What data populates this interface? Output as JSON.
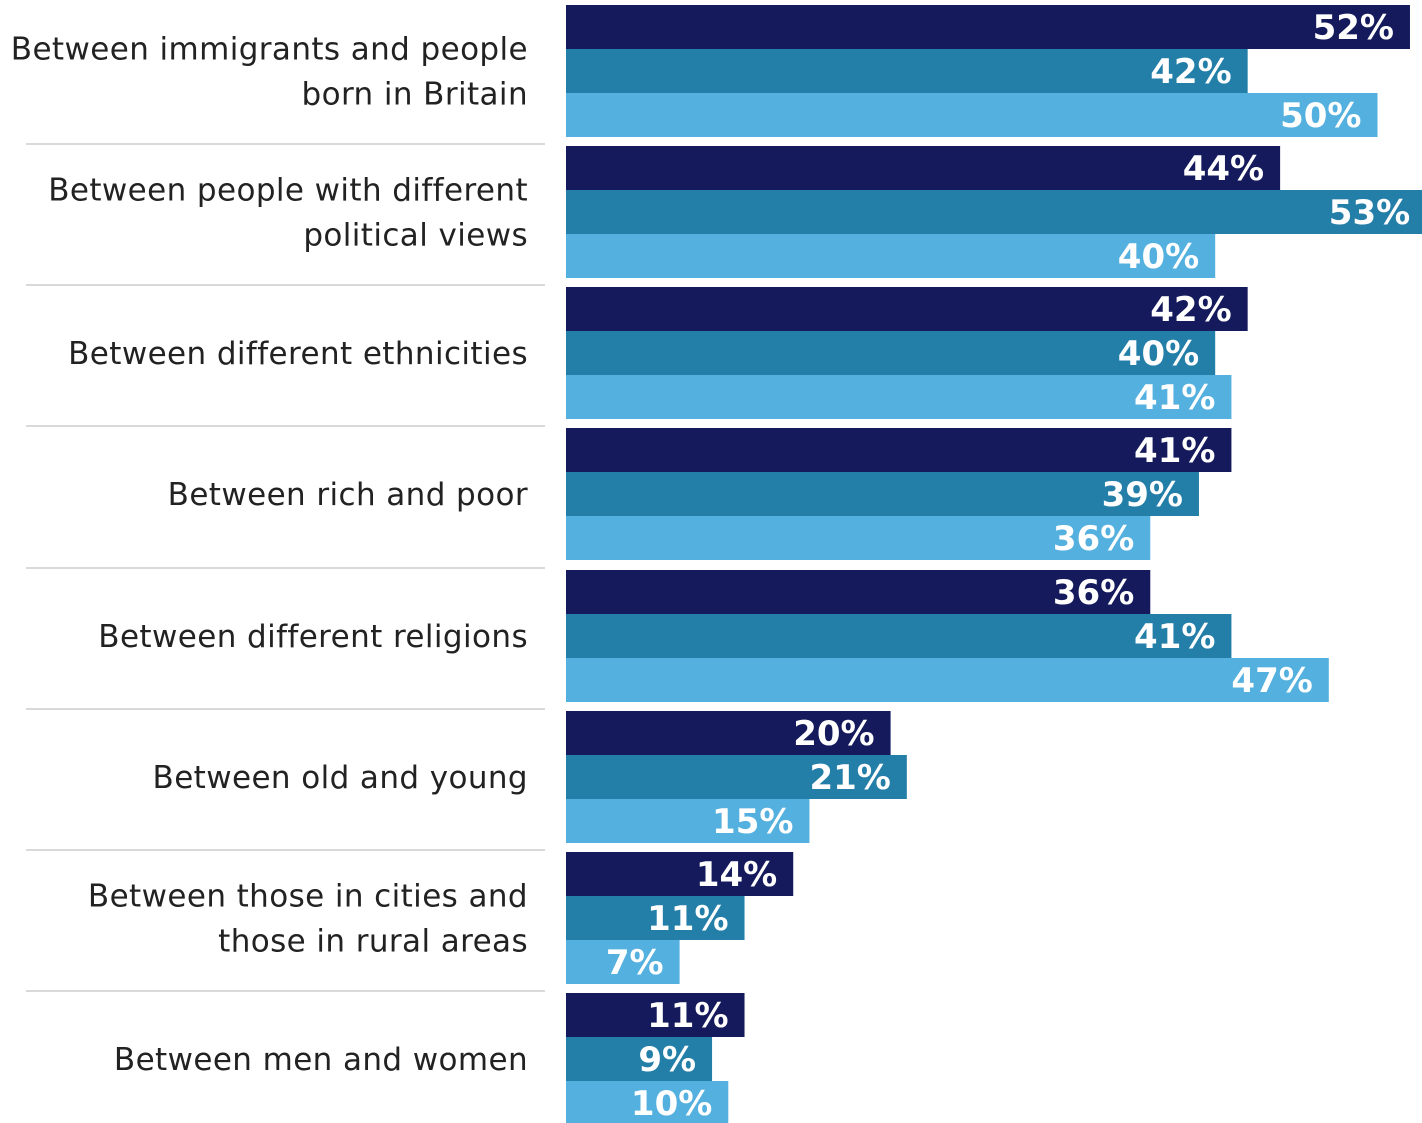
{
  "colors": {
    "series_1": "#141a5b",
    "series_2": "#237ea8",
    "series_3": "#54b0de",
    "separator": "#d9d9d9",
    "label_text": "#222222",
    "value_text": "#ffffff"
  },
  "chart_data": {
    "type": "bar",
    "orientation": "horizontal",
    "title": "",
    "xlabel": "",
    "ylabel": "",
    "xlim": [
      0,
      53
    ],
    "grid": false,
    "legend": "none",
    "categories": [
      [
        "Between immigrants and people",
        "born in Britain"
      ],
      [
        "Between people with different",
        "political views"
      ],
      [
        "Between different ethnicities"
      ],
      [
        "Between rich and poor"
      ],
      [
        "Between different religions"
      ],
      [
        "Between old and young"
      ],
      [
        "Between those in cities and",
        "those in rural areas"
      ],
      [
        "Between men and women"
      ]
    ],
    "series": [
      {
        "values": [
          52,
          44,
          42,
          41,
          36,
          20,
          14,
          11
        ]
      },
      {
        "values": [
          42,
          53,
          40,
          39,
          41,
          21,
          11,
          9
        ]
      },
      {
        "values": [
          50,
          40,
          41,
          36,
          47,
          15,
          7,
          10
        ]
      }
    ],
    "value_suffix": "%"
  }
}
